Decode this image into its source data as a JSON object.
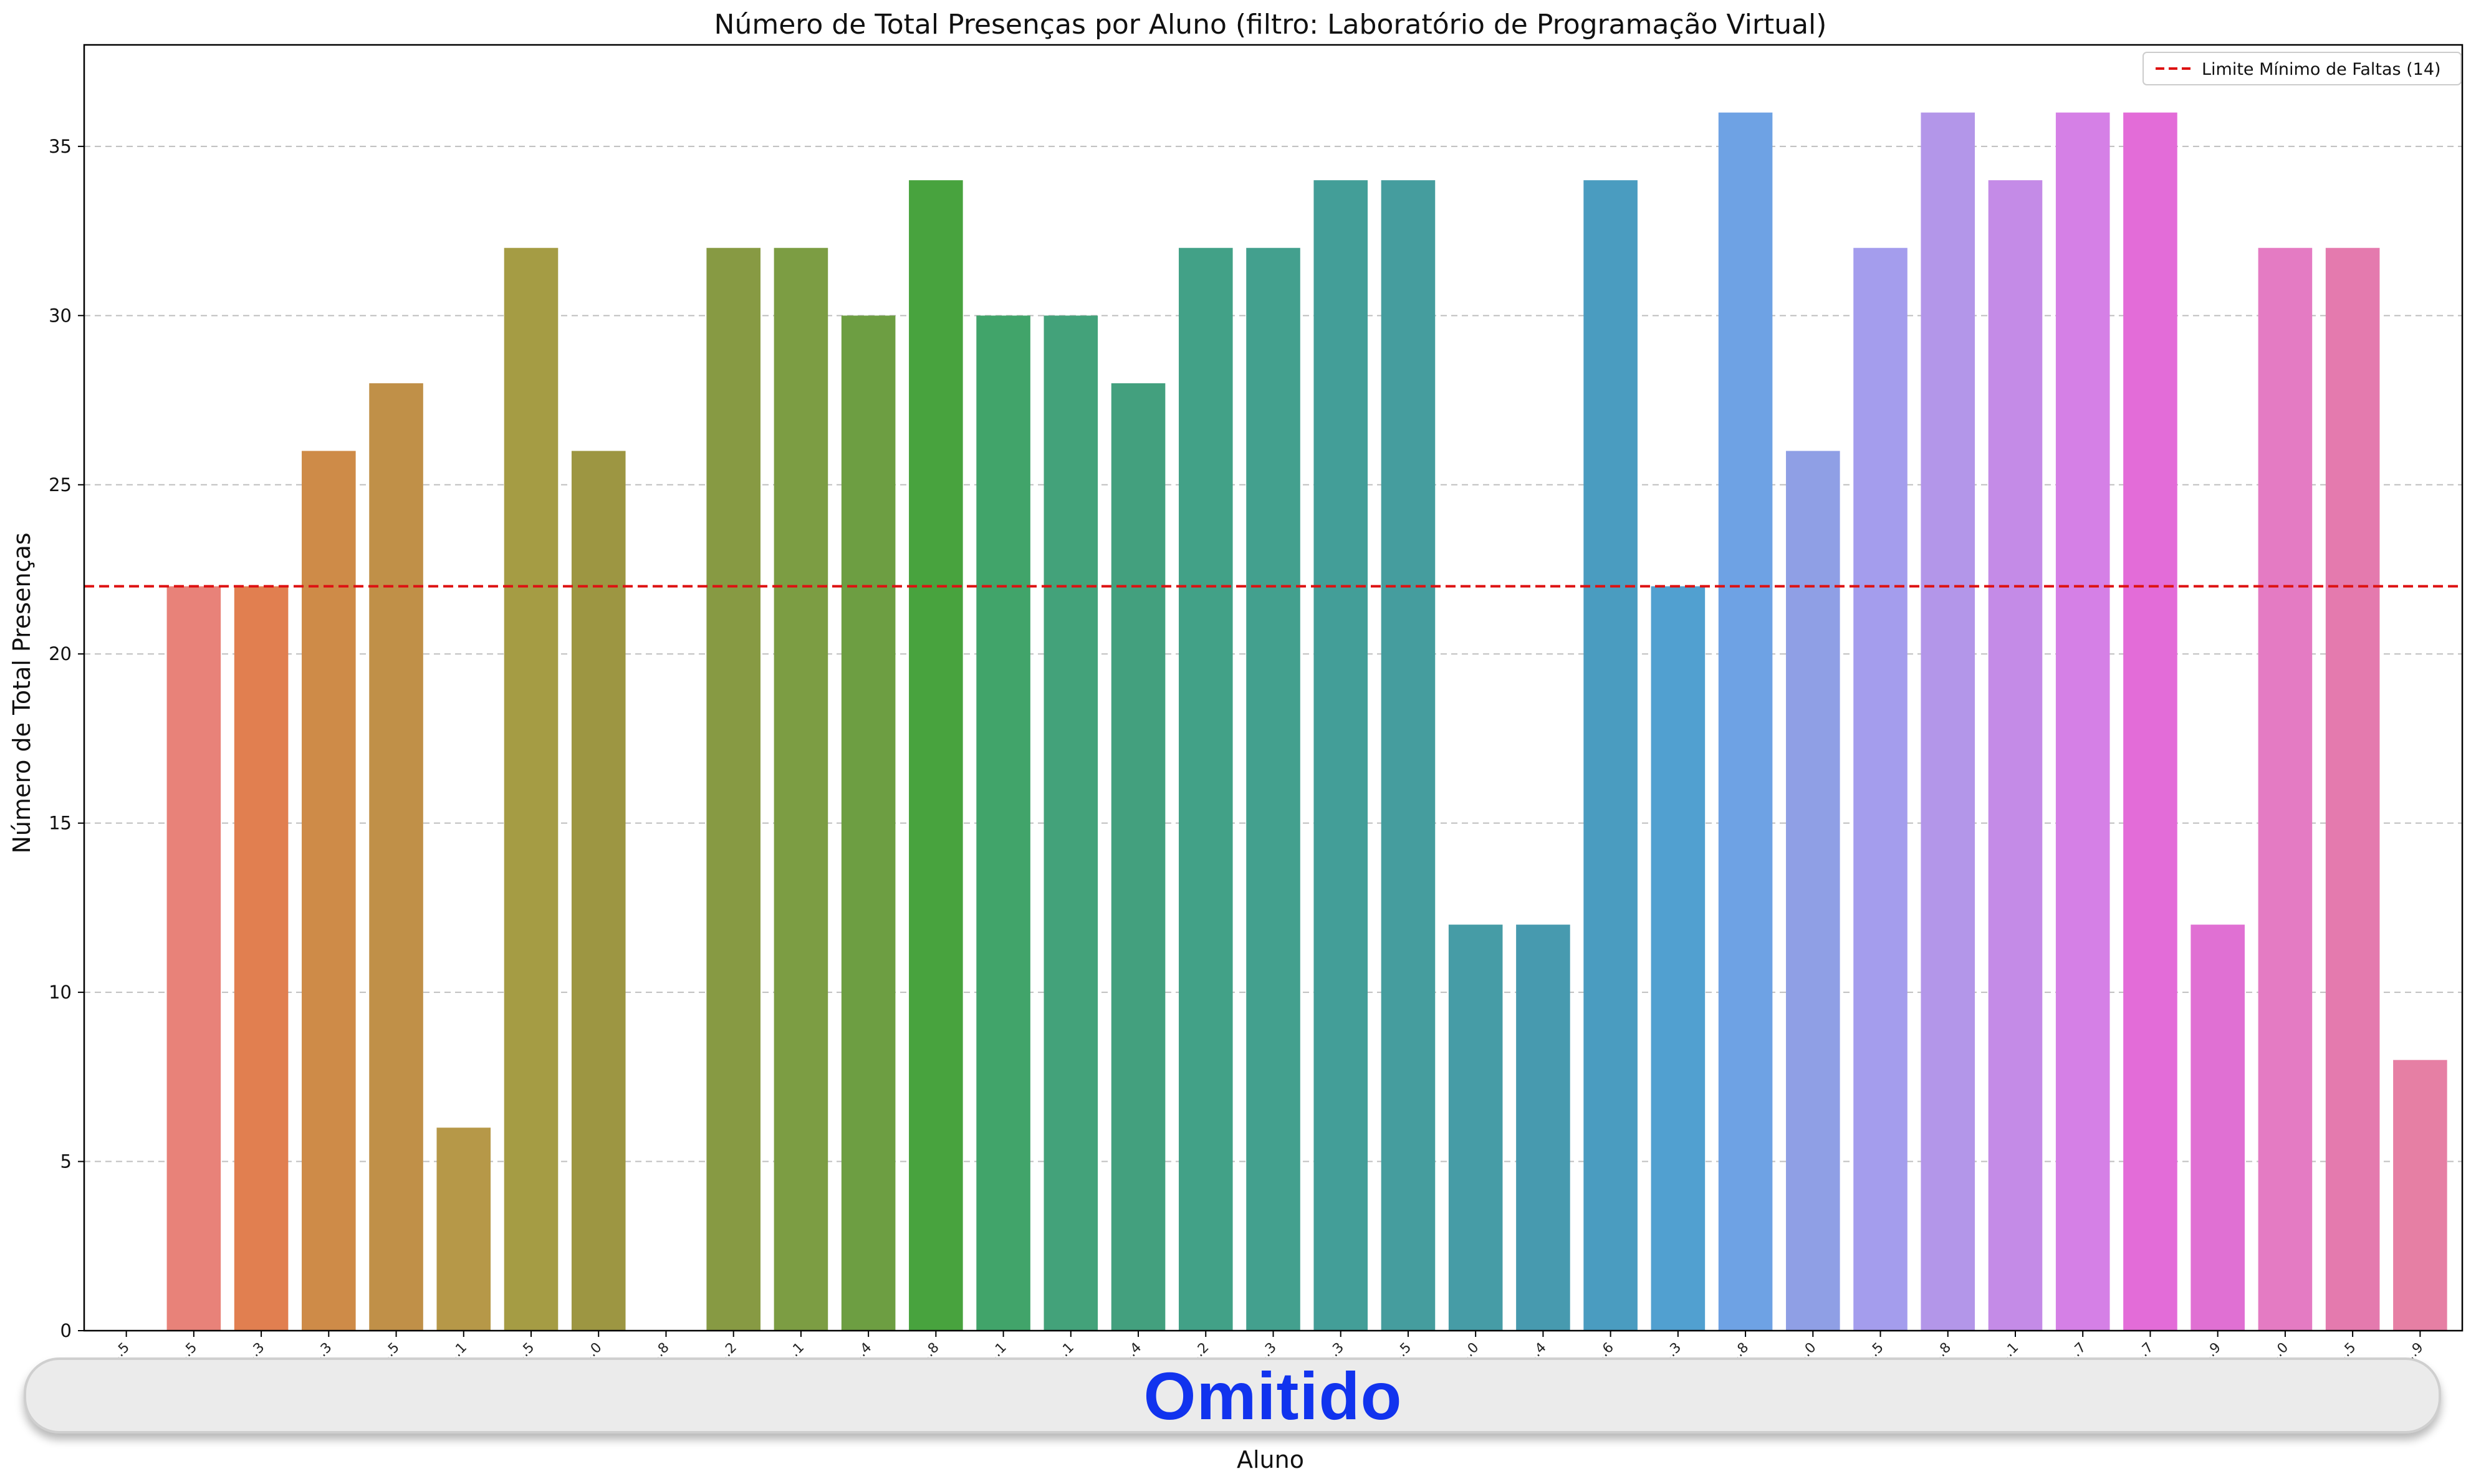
{
  "chart_data": {
    "type": "bar",
    "title": "Número de Total Presenças por Aluno (filtro: Laboratório de Programação Virtual)",
    "xlabel": "Aluno",
    "ylabel": "Número de Total Presenças",
    "ylim": [
      0,
      38
    ],
    "yticks": [
      0,
      5,
      10,
      15,
      20,
      25,
      30,
      35
    ],
    "grid": "y-dashed",
    "categories": [
      "11...5",
      "1...5",
      "1...3",
      "1...3",
      "1...5",
      "1...1",
      "1...5",
      "1...0",
      "1...8",
      "1...2",
      "1...1",
      "1...4",
      "1...8",
      "1...1",
      "1...1",
      "1...4",
      "1...2",
      "1...3",
      "1...3",
      "1...5",
      "1...0",
      "1...4",
      "1...6",
      "1...3",
      "1...8",
      "1...0",
      "1...5",
      "1...8",
      "1...1",
      "1...7",
      "1...7",
      "1...9",
      "1...0",
      "1...5",
      "1...9"
    ],
    "values": [
      0,
      22,
      22,
      26,
      28,
      6,
      32,
      26,
      0,
      32,
      32,
      30,
      34,
      30,
      30,
      28,
      32,
      32,
      34,
      34,
      12,
      12,
      34,
      22,
      36,
      26,
      32,
      36,
      34,
      36,
      36,
      12,
      32,
      32,
      8
    ],
    "colors": [
      "#f77189",
      "#e88279",
      "#e17f50",
      "#ce8b48",
      "#c09048",
      "#b69848",
      "#a59c44",
      "#9d9642",
      "#909b42",
      "#879a43",
      "#7c9d43",
      "#6d9e42",
      "#48a33e",
      "#41a46a",
      "#43a27a",
      "#43a07e",
      "#42a187",
      "#43a08e",
      "#439e98",
      "#459d9e",
      "#469ca6",
      "#479aaf",
      "#4a9cc0",
      "#51a0d0",
      "#6ea2e4",
      "#8f9fe5",
      "#a49ded",
      "#b396e9",
      "#c48be7",
      "#d580e6",
      "#e36cd8",
      "#e070d3",
      "#e47bc3",
      "#e47aae",
      "#e67fa4"
    ],
    "reference_line": {
      "value": 22,
      "label": "Limite Mínimo de Faltas (14)",
      "color": "#dd1111"
    },
    "legend": "top-right"
  },
  "overlay": {
    "text": "Omitido"
  }
}
